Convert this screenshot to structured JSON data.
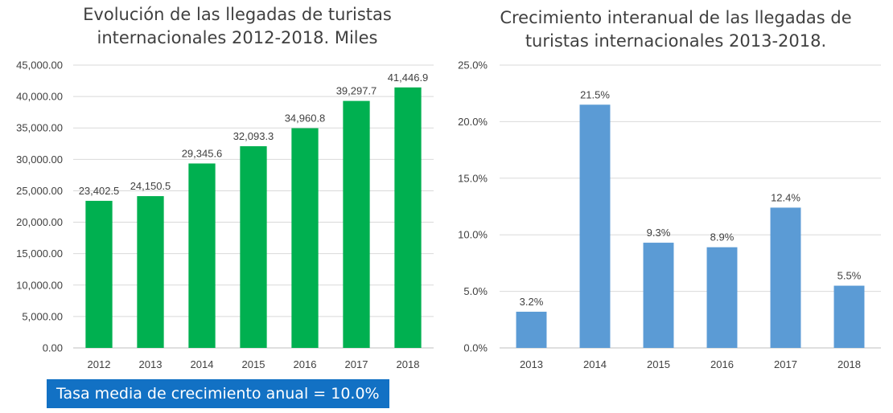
{
  "chart_data": [
    {
      "type": "bar",
      "title": "Evolución de las llegadas de turistas internacionales 2012-2018. Miles",
      "title_lines": [
        "Evolución de las llegadas de turistas",
        "internacionales 2012-2018. Miles"
      ],
      "categories": [
        "2012",
        "2013",
        "2014",
        "2015",
        "2016",
        "2017",
        "2018"
      ],
      "values": [
        23402.5,
        24150.5,
        29345.6,
        32093.3,
        34960.8,
        39297.7,
        41446.9
      ],
      "data_labels": [
        "23,402.5",
        "24,150.5",
        "29,345.6",
        "32,093.3",
        "34,960.8",
        "39,297.7",
        "41,446.9"
      ],
      "ylim": [
        0,
        45000
      ],
      "yticks": [
        0,
        5000,
        10000,
        15000,
        20000,
        25000,
        30000,
        35000,
        40000,
        45000
      ],
      "ytick_labels": [
        "0.00",
        "5,000.00",
        "10,000.00",
        "15,000.00",
        "20,000.00",
        "25,000.00",
        "30,000.00",
        "35,000.00",
        "40,000.00",
        "45,000.00"
      ],
      "color": "#00b050",
      "grid": true
    },
    {
      "type": "bar",
      "title": "Crecimiento interanual de las llegadas de turistas internacionales 2013-2018.",
      "title_lines": [
        "Crecimiento interanual de las llegadas de",
        "turistas internacionales 2013-2018."
      ],
      "categories": [
        "2013",
        "2014",
        "2015",
        "2016",
        "2017",
        "2018"
      ],
      "values": [
        3.2,
        21.5,
        9.3,
        8.9,
        12.4,
        5.5
      ],
      "data_labels": [
        "3.2%",
        "21.5%",
        "9.3%",
        "8.9%",
        "12.4%",
        "5.5%"
      ],
      "ylim": [
        0,
        25
      ],
      "yticks": [
        0,
        5,
        10,
        15,
        20,
        25
      ],
      "ytick_labels": [
        "0.0%",
        "5.0%",
        "10.0%",
        "15.0%",
        "20.0%",
        "25.0%"
      ],
      "color": "#5b9bd5",
      "grid": true
    }
  ],
  "note": "Tasa media de crecimiento anual = 10.0%"
}
